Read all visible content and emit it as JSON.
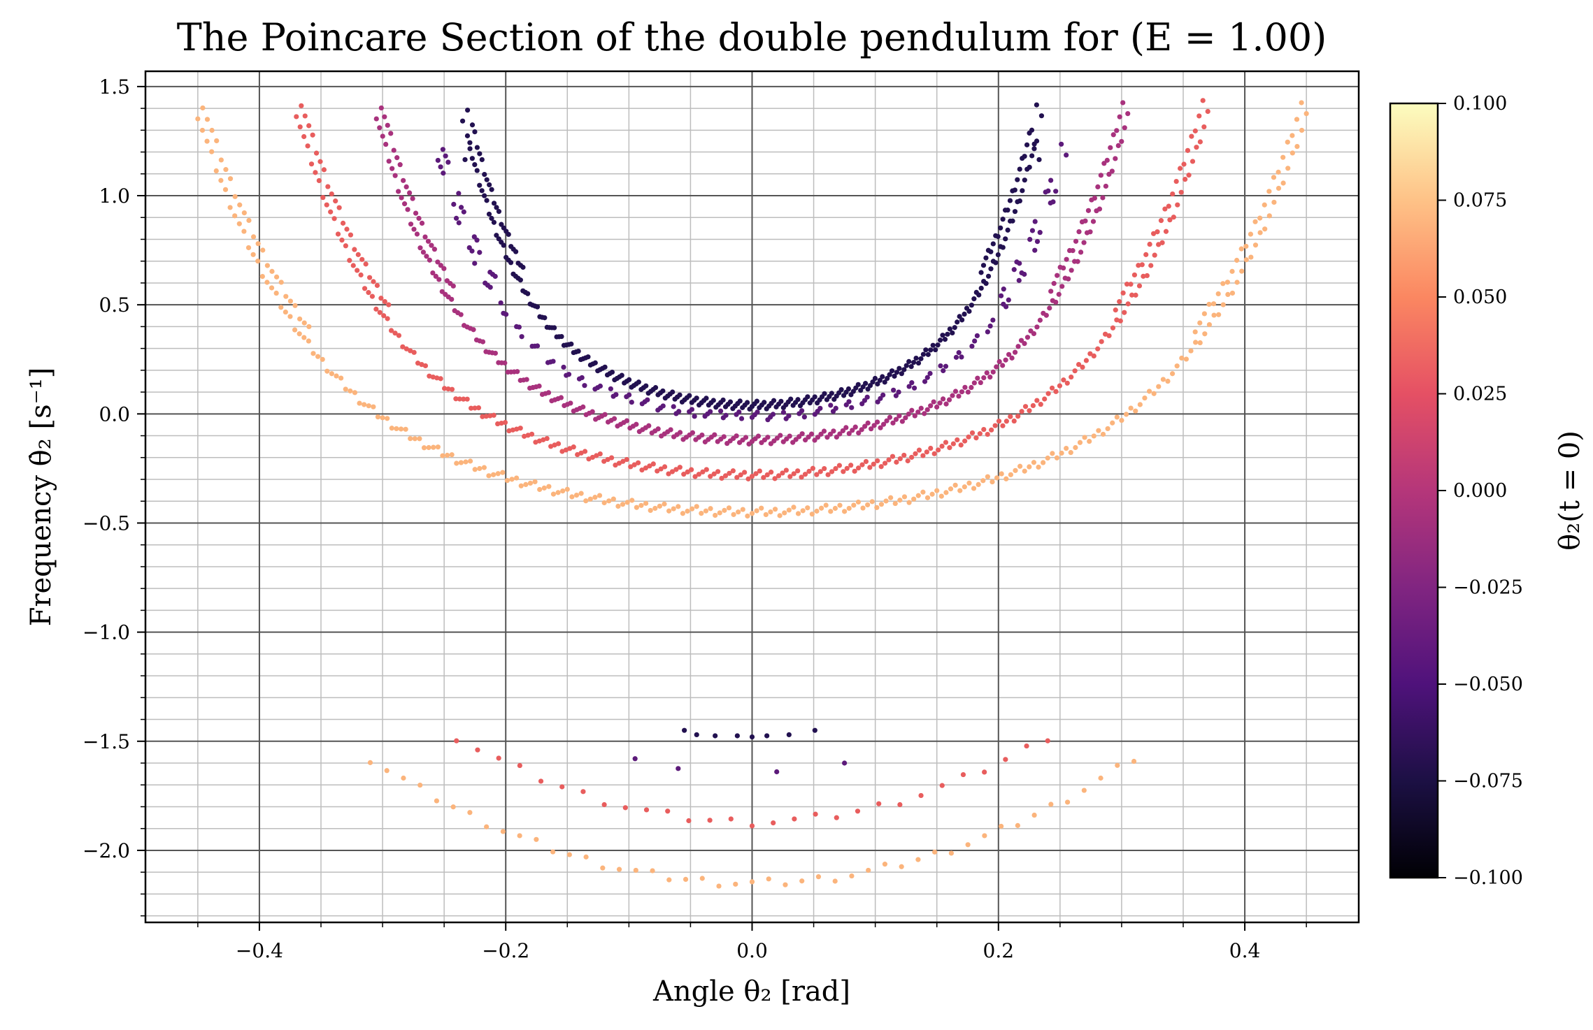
{
  "chart_data": {
    "type": "scatter",
    "title": "The Poincare Section of the double pendulum for (E = 1.00)",
    "xlabel": "Angle θ₂ [rad]",
    "ylabel": "Frequency θ̇₂ [s⁻¹]",
    "xlim": [
      -0.4925,
      0.4925
    ],
    "ylim": [
      -2.33,
      1.57
    ],
    "x_ticks": [
      -0.4,
      -0.2,
      0.0,
      0.2,
      0.4
    ],
    "x_tick_labels": [
      "−0.4",
      "−0.2",
      "0.0",
      "0.2",
      "0.4"
    ],
    "y_ticks": [
      1.5,
      1.0,
      0.5,
      0.0,
      -0.5,
      -1.0,
      -1.5,
      -2.0
    ],
    "y_tick_labels": [
      "1.5",
      "1.0",
      "0.5",
      "0.0",
      "−0.5",
      "−1.0",
      "−1.5",
      "−2.0"
    ],
    "grid": {
      "major": true,
      "minor": true
    },
    "colormap": "magma",
    "colorbar": {
      "label": "θ₂(t = 0)",
      "range": [
        -0.1,
        0.1
      ],
      "ticks": [
        0.1,
        0.075,
        0.05,
        0.025,
        0.0,
        -0.025,
        -0.05,
        -0.075,
        -0.1
      ],
      "tick_labels": [
        "0.100",
        "0.075",
        "0.050",
        "0.025",
        "0.000",
        "−0.025",
        "−0.050",
        "−0.075",
        "−0.100"
      ]
    },
    "series": [
      {
        "initial_theta2": -0.075,
        "color": "#221150",
        "upper_arc": {
          "center_x": 0.0,
          "half_width": 0.235,
          "y_low": 0.04,
          "y_high": 1.36,
          "y_end_gap": 1.02
        },
        "lower_arc": {
          "points": [
            [
              -0.055,
              -1.45
            ],
            [
              -0.045,
              -1.47
            ],
            [
              -0.03,
              -1.475
            ],
            [
              -0.012,
              -1.475
            ],
            [
              0.0,
              -1.48
            ],
            [
              0.012,
              -1.475
            ],
            [
              0.03,
              -1.47
            ],
            [
              0.051,
              -1.45
            ]
          ]
        }
      },
      {
        "initial_theta2": -0.04,
        "color": "#5c1a7a",
        "upper_arc": {
          "center_x": 0.0,
          "half_width": 0.255,
          "y_low": -0.01,
          "y_high": 1.18,
          "pattern": "islands"
        },
        "lower_arc": {
          "points": [
            [
              -0.095,
              -1.58
            ],
            [
              -0.06,
              -1.625
            ],
            [
              0.02,
              -1.64
            ],
            [
              0.075,
              -1.6
            ]
          ]
        }
      },
      {
        "initial_theta2": -0.01,
        "color": "#a8327d",
        "upper_arc": {
          "center_x": 0.0,
          "half_width": 0.305,
          "y_low": -0.12,
          "y_high": 1.37
        },
        "lower_arc": {
          "points": []
        }
      },
      {
        "initial_theta2": 0.04,
        "color": "#e85d5d",
        "upper_arc": {
          "center_x": 0.0,
          "half_width": 0.37,
          "y_low": -0.28,
          "y_high": 1.38
        },
        "lower_arc": {
          "center_x": 0.0,
          "half_width": 0.24,
          "y_low": -1.87,
          "y_high": -1.48
        }
      },
      {
        "initial_theta2": 0.07,
        "color": "#fbb47c",
        "upper_arc": {
          "center_x": 0.0,
          "half_width": 0.45,
          "y_low": -0.45,
          "y_high": 1.37
        },
        "lower_arc": {
          "center_x": 0.0,
          "half_width": 0.31,
          "y_low": -2.15,
          "y_high": -1.58
        }
      }
    ]
  }
}
